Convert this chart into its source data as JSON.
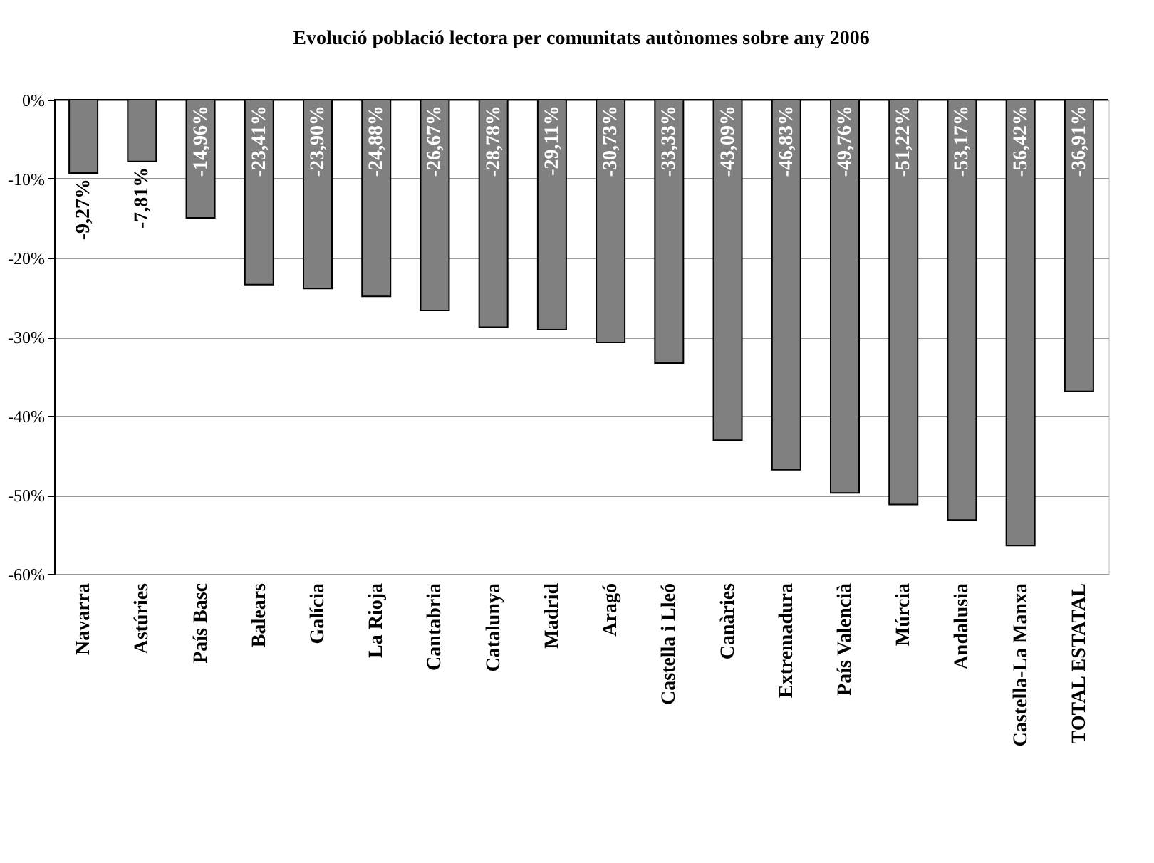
{
  "chart_data": {
    "type": "bar",
    "title": "Evolució població lectora per comunitats autònomes sobre any 2006",
    "categories": [
      "Navarra",
      "Astúries",
      "País Basc",
      "Balears",
      "Galícia",
      "La Rioja",
      "Cantabria",
      "Catalunya",
      "Madrid",
      "Aragó",
      "Castella i Lleó",
      "Canàries",
      "Extremadura",
      "País Valencià",
      "Múrcia",
      "Andalusia",
      "Castella-La Manxa",
      "TOTAL ESTATAL"
    ],
    "values": [
      -9.27,
      -7.81,
      -14.96,
      -23.41,
      -23.9,
      -24.88,
      -26.67,
      -28.78,
      -29.11,
      -30.73,
      -33.33,
      -43.09,
      -46.83,
      -49.76,
      -51.22,
      -53.17,
      -56.42,
      -36.91
    ],
    "value_labels": [
      "-9,27%",
      "-7,81%",
      "-14,96%",
      "-23,41%",
      "-23,90%",
      "-24,88%",
      "-26,67%",
      "-28,78%",
      "-29,11%",
      "-30,73%",
      "-33,33%",
      "-43,09%",
      "-46,83%",
      "-49,76%",
      "-51,22%",
      "-53,17%",
      "-56,42%",
      "-36,91%"
    ],
    "color": "#808080",
    "ylim": [
      -60,
      0
    ],
    "yticks": [
      {
        "value": 0,
        "label": "0%"
      },
      {
        "value": -10,
        "label": "-10%"
      },
      {
        "value": -20,
        "label": "-20%"
      },
      {
        "value": -30,
        "label": "-30%"
      },
      {
        "value": -40,
        "label": "-40%"
      },
      {
        "value": -50,
        "label": "-50%"
      },
      {
        "value": -60,
        "label": "-60%"
      }
    ],
    "grid": "y"
  }
}
